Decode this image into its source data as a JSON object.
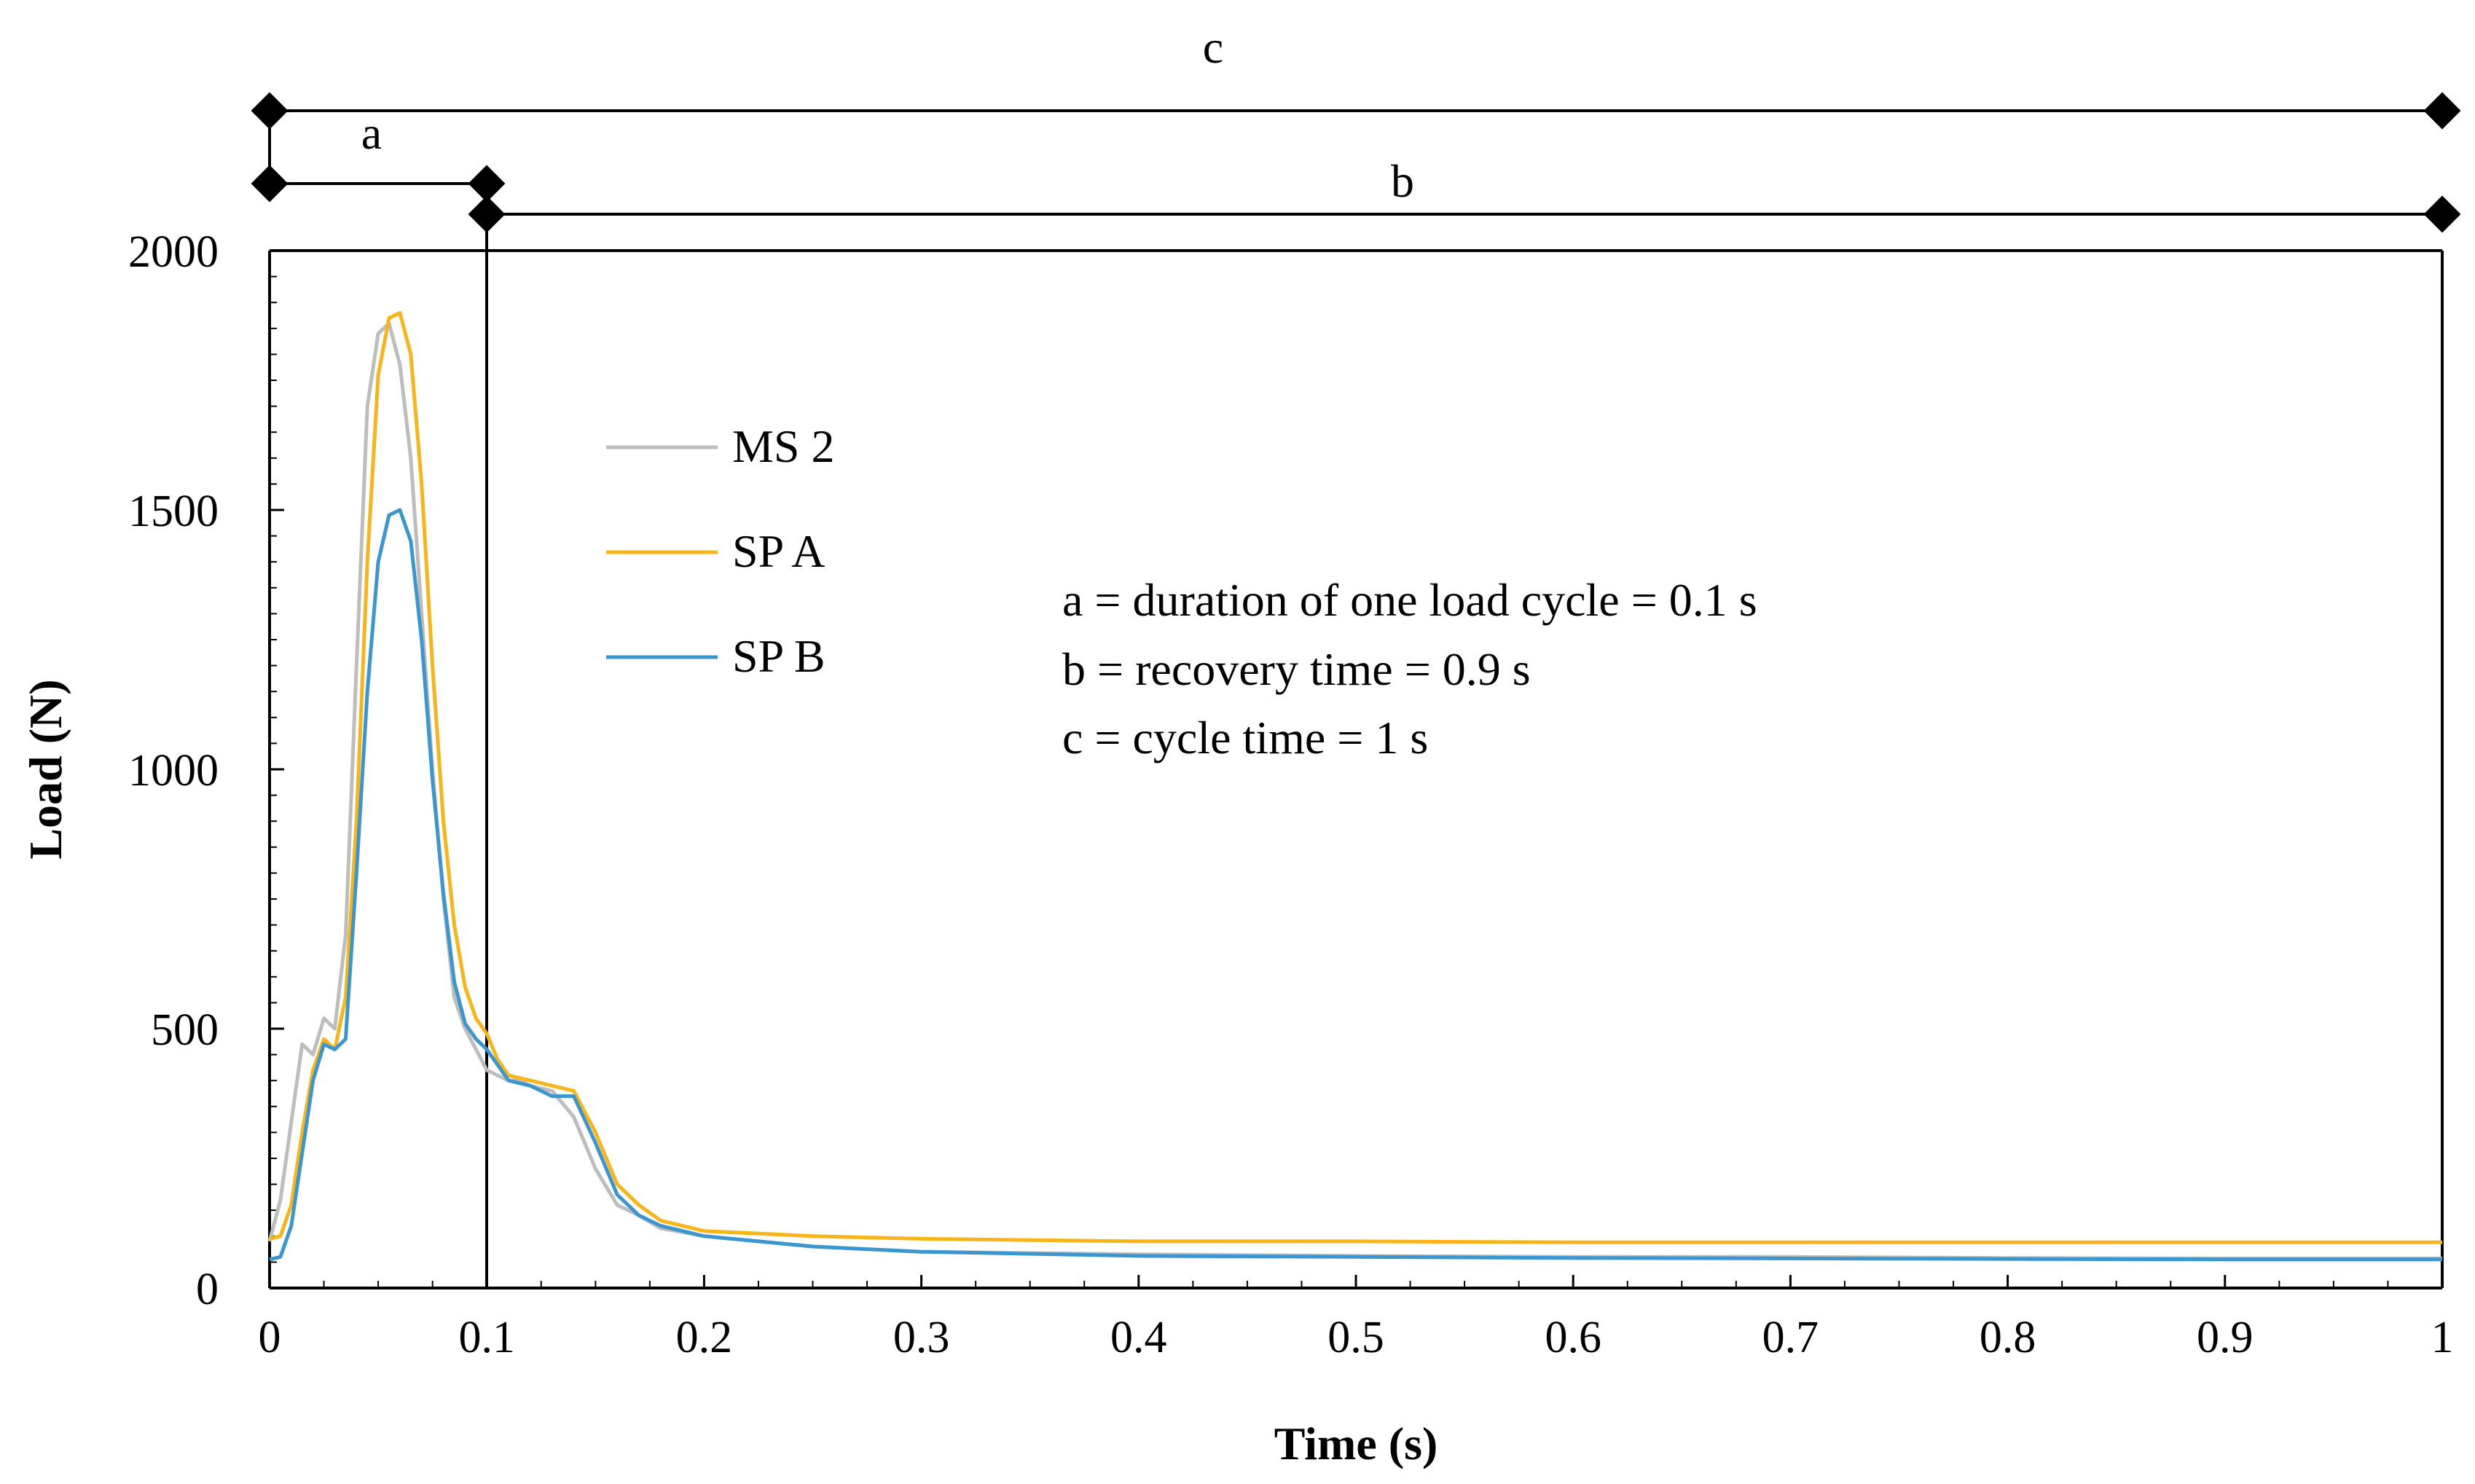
{
  "chart_data": {
    "type": "line",
    "title": "",
    "xlabel": "Time (s)",
    "ylabel": "Load (N)",
    "xlim": [
      0,
      1
    ],
    "ylim": [
      0,
      2000
    ],
    "x_ticks": [
      0,
      0.1,
      0.2,
      0.3,
      0.4,
      0.5,
      0.6,
      0.7,
      0.8,
      0.9,
      1
    ],
    "x_tick_labels": [
      "0",
      "0.1",
      "0.2",
      "0.3",
      "0.4",
      "0.5",
      "0.6",
      "0.7",
      "0.8",
      "0.9",
      "1"
    ],
    "y_ticks": [
      0,
      500,
      1000,
      1500,
      2000
    ],
    "y_tick_labels": [
      "0",
      "500",
      "1000",
      "1500",
      "2000"
    ],
    "grid": false,
    "legend_position": "upper-left",
    "series": [
      {
        "name": "MS 2",
        "color": "#bdbdbd",
        "x": [
          0,
          0.005,
          0.01,
          0.015,
          0.02,
          0.025,
          0.03,
          0.035,
          0.04,
          0.045,
          0.05,
          0.055,
          0.06,
          0.065,
          0.07,
          0.075,
          0.08,
          0.085,
          0.09,
          0.095,
          0.1,
          0.105,
          0.11,
          0.115,
          0.12,
          0.13,
          0.14,
          0.15,
          0.16,
          0.17,
          0.18,
          0.2,
          0.25,
          0.3,
          0.4,
          0.5,
          0.6,
          0.7,
          0.8,
          0.9,
          1.0
        ],
        "y": [
          90,
          170,
          320,
          470,
          450,
          520,
          500,
          680,
          1200,
          1700,
          1840,
          1860,
          1780,
          1600,
          1300,
          1000,
          750,
          560,
          500,
          460,
          420,
          410,
          400,
          400,
          390,
          380,
          330,
          230,
          160,
          140,
          115,
          100,
          80,
          70,
          65,
          62,
          60,
          60,
          58,
          57,
          57
        ]
      },
      {
        "name": "SP A",
        "color": "#f7b519",
        "x": [
          0,
          0.005,
          0.01,
          0.015,
          0.02,
          0.025,
          0.03,
          0.035,
          0.04,
          0.045,
          0.05,
          0.055,
          0.06,
          0.065,
          0.07,
          0.075,
          0.08,
          0.085,
          0.09,
          0.095,
          0.1,
          0.105,
          0.11,
          0.12,
          0.13,
          0.14,
          0.15,
          0.16,
          0.17,
          0.18,
          0.2,
          0.25,
          0.3,
          0.4,
          0.5,
          0.6,
          0.7,
          0.8,
          0.9,
          1.0
        ],
        "y": [
          95,
          100,
          160,
          300,
          420,
          480,
          460,
          560,
          900,
          1400,
          1760,
          1870,
          1880,
          1800,
          1550,
          1200,
          900,
          700,
          580,
          520,
          490,
          440,
          410,
          400,
          390,
          380,
          300,
          200,
          160,
          130,
          110,
          100,
          95,
          90,
          90,
          88,
          88,
          88,
          88,
          88
        ]
      },
      {
        "name": "SP B",
        "color": "#3b96cf",
        "x": [
          0,
          0.005,
          0.01,
          0.015,
          0.02,
          0.025,
          0.03,
          0.035,
          0.04,
          0.045,
          0.05,
          0.055,
          0.06,
          0.065,
          0.07,
          0.075,
          0.08,
          0.085,
          0.09,
          0.095,
          0.1,
          0.105,
          0.11,
          0.12,
          0.13,
          0.14,
          0.15,
          0.16,
          0.17,
          0.18,
          0.2,
          0.25,
          0.3,
          0.4,
          0.5,
          0.6,
          0.7,
          0.8,
          0.9,
          1.0
        ],
        "y": [
          55,
          60,
          120,
          260,
          400,
          470,
          460,
          480,
          800,
          1150,
          1400,
          1490,
          1500,
          1440,
          1250,
          980,
          760,
          590,
          510,
          480,
          460,
          430,
          400,
          390,
          370,
          370,
          280,
          180,
          140,
          120,
          100,
          80,
          70,
          62,
          60,
          58,
          57,
          56,
          55,
          55
        ]
      }
    ],
    "annotations": [
      "a = duration of one load cycle = 0.1 s",
      "b = recovery time = 0.9 s",
      "c = cycle time = 1 s"
    ],
    "brackets": [
      {
        "label": "c",
        "from": 0,
        "to": 1
      },
      {
        "label": "a",
        "from": 0,
        "to": 0.1
      },
      {
        "label": "b",
        "from": 0.1,
        "to": 1
      }
    ]
  }
}
